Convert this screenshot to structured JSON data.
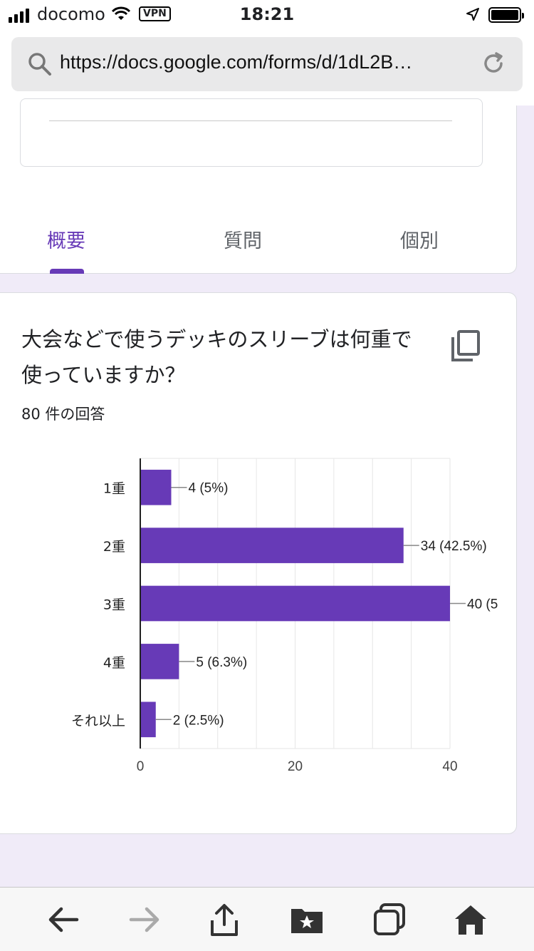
{
  "status_bar": {
    "carrier": "docomo",
    "vpn_label": "VPN",
    "time": "18:21"
  },
  "browser": {
    "url": "https://docs.google.com/forms/d/1dL2B…"
  },
  "tabs": [
    {
      "label": "概要",
      "active": true
    },
    {
      "label": "質問",
      "active": false
    },
    {
      "label": "個別",
      "active": false
    }
  ],
  "question": {
    "title": "大会などで使うデッキのスリーブは何重で使っていますか？",
    "responses": "80 件の回答"
  },
  "chart_data": {
    "type": "bar",
    "orientation": "horizontal",
    "categories": [
      "1重",
      "2重",
      "3重",
      "4重",
      "それ以上"
    ],
    "values": [
      4,
      34,
      40,
      5,
      2
    ],
    "data_labels": [
      "4 (5%)",
      "34 (42.5%)",
      "40 (5",
      "5 (6.3%)",
      "2 (2.5%)"
    ],
    "xlim": [
      0,
      40
    ],
    "xticks": [
      "0",
      "20",
      "40"
    ],
    "grid": true,
    "color": "#673ab7"
  },
  "colors": {
    "accent": "#673ab7",
    "background": "#f0ebf8"
  }
}
